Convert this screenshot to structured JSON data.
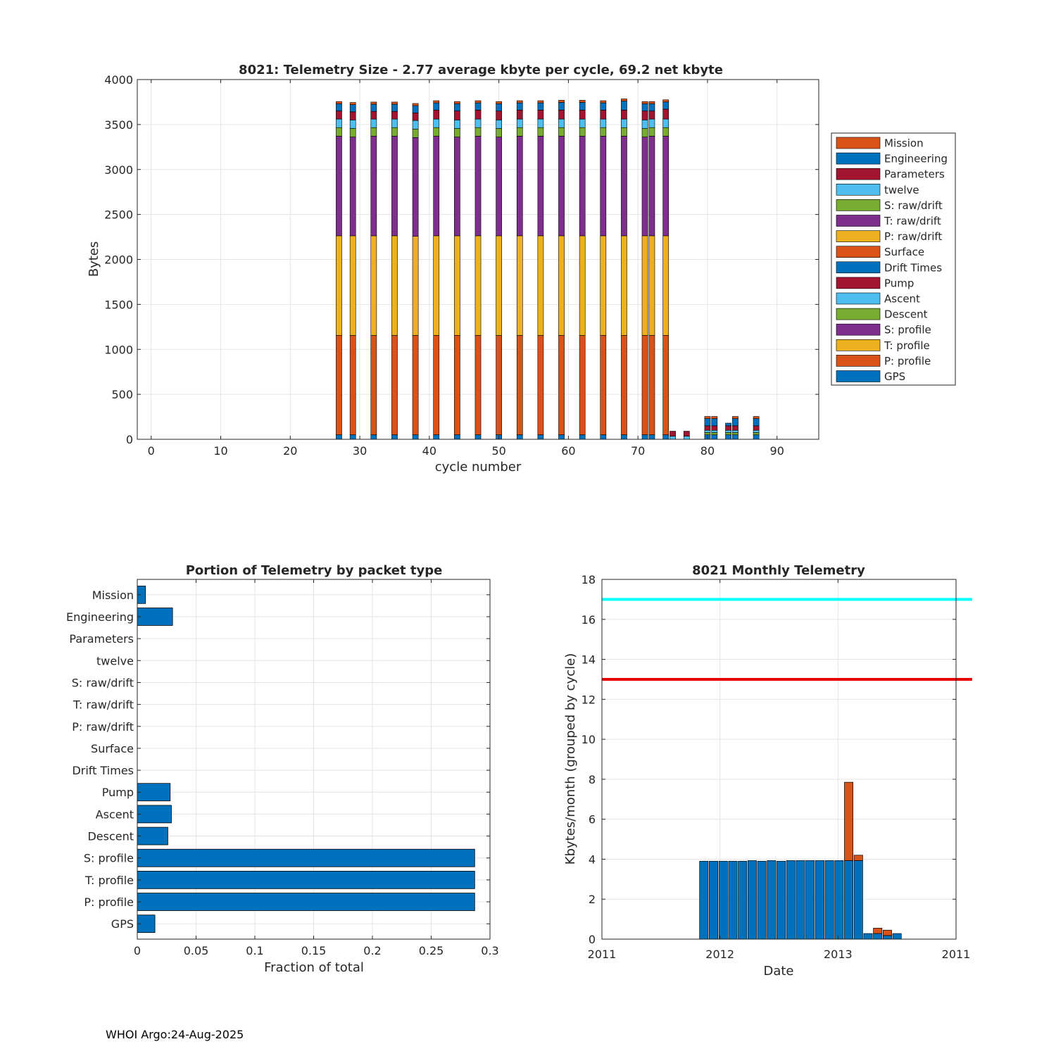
{
  "colors": {
    "GPS": "#0072BD",
    "P: profile": "#D95319",
    "T: profile": "#EDB120",
    "S: profile": "#7E2F8E",
    "Descent": "#77AC30",
    "Ascent": "#4DBEEE",
    "Pump": "#A2142F",
    "Drift Times": "#0072BD",
    "Surface": "#D95319",
    "P: raw/drift": "#EDB120",
    "T: raw/drift": "#7E2F8E",
    "S: raw/drift": "#77AC30",
    "twelve": "#4DBEEE",
    "Parameters": "#A2142F",
    "Engineering": "#0072BD",
    "Mission": "#D95319",
    "bar": "#0072BD",
    "bar_extra": "#D95319",
    "limit_high": "#00FFFF",
    "limit_low": "#E60000"
  },
  "chart_data": [
    {
      "type": "bar",
      "stacked": true,
      "title": "8021: Telemetry Size - 2.77 average kbyte per cycle,   69.2 net kbyte",
      "xlabel": "cycle number",
      "ylabel": "Bytes",
      "xlim": [
        -2,
        96
      ],
      "ylim": [
        0,
        4000
      ],
      "xticks": [
        0,
        10,
        20,
        30,
        40,
        50,
        60,
        70,
        80,
        90
      ],
      "yticks": [
        0,
        500,
        1000,
        1500,
        2000,
        2500,
        3000,
        3500,
        4000
      ],
      "grid": true,
      "legend_position": "outside-right",
      "legend": [
        "Mission",
        "Engineering",
        "Parameters",
        "twelve",
        "S: raw/drift",
        "T: raw/drift",
        "P: raw/drift",
        "Surface",
        "Drift Times",
        "Pump",
        "Ascent",
        "Descent",
        "S: profile",
        "T: profile",
        "P: profile",
        "GPS"
      ],
      "series_order": [
        "GPS",
        "P: profile",
        "T: profile",
        "S: profile",
        "Descent",
        "Ascent",
        "Pump",
        "Drift Times",
        "Surface",
        "P: raw/drift",
        "T: raw/drift",
        "S: raw/drift",
        "twelve",
        "Parameters",
        "Engineering",
        "Mission"
      ],
      "bars": [
        {
          "x": 27,
          "segments": [
            50,
            1105,
            1108,
            1108,
            95,
            95,
            90,
            0,
            0,
            0,
            0,
            0,
            0,
            0,
            80,
            24
          ]
        },
        {
          "x": 29,
          "segments": [
            50,
            1105,
            1108,
            1098,
            95,
            95,
            90,
            0,
            0,
            0,
            0,
            0,
            0,
            0,
            80,
            24
          ]
        },
        {
          "x": 32,
          "segments": [
            50,
            1105,
            1108,
            1108,
            95,
            95,
            85,
            0,
            0,
            0,
            0,
            0,
            0,
            0,
            80,
            24
          ]
        },
        {
          "x": 35,
          "segments": [
            50,
            1105,
            1108,
            1108,
            95,
            95,
            85,
            0,
            0,
            0,
            0,
            0,
            0,
            0,
            80,
            24
          ]
        },
        {
          "x": 38,
          "segments": [
            50,
            1105,
            1102,
            1098,
            95,
            95,
            85,
            0,
            0,
            0,
            0,
            0,
            0,
            0,
            80,
            24
          ]
        },
        {
          "x": 41,
          "segments": [
            50,
            1105,
            1108,
            1108,
            95,
            95,
            100,
            0,
            0,
            0,
            0,
            0,
            0,
            0,
            80,
            24
          ]
        },
        {
          "x": 44,
          "segments": [
            50,
            1105,
            1108,
            1098,
            95,
            95,
            100,
            0,
            0,
            0,
            0,
            0,
            0,
            0,
            80,
            24
          ]
        },
        {
          "x": 47,
          "segments": [
            50,
            1105,
            1108,
            1108,
            95,
            95,
            100,
            0,
            0,
            0,
            0,
            0,
            0,
            0,
            80,
            24
          ]
        },
        {
          "x": 50,
          "segments": [
            50,
            1105,
            1108,
            1098,
            95,
            95,
            100,
            0,
            0,
            0,
            0,
            0,
            0,
            0,
            80,
            24
          ]
        },
        {
          "x": 53,
          "segments": [
            50,
            1105,
            1108,
            1108,
            95,
            95,
            100,
            0,
            0,
            0,
            0,
            0,
            0,
            0,
            80,
            24
          ]
        },
        {
          "x": 56,
          "segments": [
            50,
            1105,
            1108,
            1108,
            95,
            95,
            100,
            0,
            0,
            0,
            0,
            0,
            0,
            0,
            80,
            24
          ]
        },
        {
          "x": 59,
          "segments": [
            50,
            1105,
            1108,
            1108,
            95,
            95,
            100,
            0,
            0,
            0,
            0,
            0,
            0,
            0,
            85,
            24
          ]
        },
        {
          "x": 62,
          "segments": [
            50,
            1105,
            1108,
            1108,
            95,
            95,
            100,
            0,
            0,
            0,
            0,
            0,
            0,
            0,
            85,
            24
          ]
        },
        {
          "x": 65,
          "segments": [
            50,
            1105,
            1108,
            1108,
            95,
            95,
            100,
            0,
            0,
            0,
            0,
            0,
            0,
            0,
            80,
            24
          ]
        },
        {
          "x": 68,
          "segments": [
            50,
            1105,
            1108,
            1108,
            95,
            95,
            100,
            0,
            0,
            0,
            0,
            0,
            0,
            0,
            100,
            24
          ]
        },
        {
          "x": 71,
          "segments": [
            50,
            1105,
            1108,
            1098,
            95,
            95,
            100,
            0,
            0,
            0,
            0,
            0,
            0,
            0,
            80,
            24
          ]
        },
        {
          "x": 72,
          "segments": [
            50,
            1105,
            1108,
            1108,
            95,
            95,
            90,
            0,
            0,
            0,
            0,
            0,
            0,
            0,
            80,
            24
          ]
        },
        {
          "x": 74,
          "segments": [
            50,
            1105,
            1108,
            1108,
            95,
            95,
            110,
            0,
            0,
            0,
            0,
            0,
            0,
            0,
            80,
            24
          ]
        },
        {
          "x": 75,
          "segments": [
            0,
            0,
            0,
            0,
            0,
            35,
            55,
            0,
            0,
            0,
            0,
            0,
            0,
            0,
            0,
            0
          ]
        },
        {
          "x": 77,
          "segments": [
            0,
            0,
            0,
            0,
            0,
            35,
            55,
            0,
            0,
            0,
            0,
            0,
            0,
            0,
            0,
            0
          ]
        },
        {
          "x": 80,
          "segments": [
            50,
            0,
            0,
            0,
            25,
            25,
            50,
            0,
            0,
            0,
            0,
            0,
            0,
            0,
            80,
            24
          ]
        },
        {
          "x": 81,
          "segments": [
            50,
            0,
            0,
            0,
            25,
            25,
            50,
            0,
            0,
            0,
            0,
            0,
            0,
            0,
            80,
            24
          ]
        },
        {
          "x": 83,
          "segments": [
            50,
            0,
            0,
            0,
            25,
            25,
            50,
            0,
            0,
            0,
            0,
            0,
            0,
            0,
            30,
            0
          ]
        },
        {
          "x": 84,
          "segments": [
            50,
            0,
            0,
            0,
            25,
            25,
            50,
            0,
            0,
            0,
            0,
            0,
            0,
            0,
            80,
            24
          ]
        },
        {
          "x": 87,
          "segments": [
            50,
            0,
            0,
            0,
            25,
            25,
            50,
            0,
            0,
            0,
            0,
            0,
            0,
            0,
            80,
            24
          ]
        }
      ]
    },
    {
      "type": "bar",
      "orientation": "horizontal",
      "title": "Portion of Telemetry by packet type",
      "xlabel": "Fraction of total",
      "xlim": [
        0,
        0.3
      ],
      "xticks": [
        0,
        0.05,
        0.1,
        0.15,
        0.2,
        0.25,
        0.3
      ],
      "xtick_labels": [
        "0",
        "0.05",
        "0.1",
        "0.15",
        "0.2",
        "0.25",
        "0.3"
      ],
      "grid": true,
      "categories": [
        "GPS",
        "P: profile",
        "T: profile",
        "S: profile",
        "Descent",
        "Ascent",
        "Pump",
        "Drift Times",
        "Surface",
        "P: raw/drift",
        "T: raw/drift",
        "S: raw/drift",
        "twelve",
        "Parameters",
        "Engineering",
        "Mission"
      ],
      "values": [
        0.015,
        0.287,
        0.287,
        0.287,
        0.026,
        0.029,
        0.028,
        0,
        0,
        0,
        0,
        0,
        0,
        0,
        0.03,
        0.007
      ]
    },
    {
      "type": "bar",
      "stacked": true,
      "title": "8021 Monthly Telemetry",
      "xlabel": "Date",
      "ylabel": "Kbytes/month (grouped by cycle)",
      "xlim": [
        0,
        33
      ],
      "ylim": [
        0,
        18
      ],
      "xticks": [
        0,
        11,
        22,
        33
      ],
      "xtick_labels": [
        "2011",
        "2012",
        "2013",
        "2011"
      ],
      "yticks": [
        0,
        2,
        4,
        6,
        8,
        10,
        12,
        14,
        16,
        18
      ],
      "grid": true,
      "bars": [
        {
          "x": 9.5,
          "base": 3.9,
          "extra": 0
        },
        {
          "x": 10.4,
          "base": 3.9,
          "extra": 0
        },
        {
          "x": 11.3,
          "base": 3.9,
          "extra": 0
        },
        {
          "x": 12.2,
          "base": 3.9,
          "extra": 0
        },
        {
          "x": 13.1,
          "base": 3.9,
          "extra": 0
        },
        {
          "x": 14.0,
          "base": 3.93,
          "extra": 0
        },
        {
          "x": 14.9,
          "base": 3.9,
          "extra": 0
        },
        {
          "x": 15.8,
          "base": 3.93,
          "extra": 0
        },
        {
          "x": 16.7,
          "base": 3.9,
          "extra": 0
        },
        {
          "x": 17.6,
          "base": 3.93,
          "extra": 0
        },
        {
          "x": 18.5,
          "base": 3.93,
          "extra": 0
        },
        {
          "x": 19.4,
          "base": 3.93,
          "extra": 0
        },
        {
          "x": 20.3,
          "base": 3.93,
          "extra": 0
        },
        {
          "x": 21.2,
          "base": 3.93,
          "extra": 0
        },
        {
          "x": 22.1,
          "base": 3.93,
          "extra": 0
        },
        {
          "x": 23.0,
          "base": 3.93,
          "extra": 3.92
        },
        {
          "x": 23.9,
          "base": 3.93,
          "extra": 0.27
        },
        {
          "x": 24.8,
          "base": 0.28,
          "extra": 0
        },
        {
          "x": 25.7,
          "base": 0.28,
          "extra": 0.27
        },
        {
          "x": 26.6,
          "base": 0.18,
          "extra": 0.27
        },
        {
          "x": 27.5,
          "base": 0.28,
          "extra": 0
        }
      ],
      "lines": [
        {
          "name": "upper-limit",
          "y": 17,
          "x": [
            0,
            34.5
          ],
          "color": "#00FFFF"
        },
        {
          "name": "lower-limit",
          "y": 13,
          "x": [
            0,
            34.5
          ],
          "color": "#E60000"
        }
      ]
    }
  ],
  "footer": "WHOI Argo:24-Aug-2025"
}
